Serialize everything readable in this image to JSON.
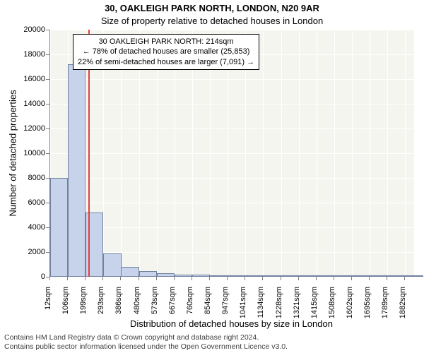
{
  "title": "30, OAKLEIGH PARK NORTH, LONDON, N20 9AR",
  "subtitle": "Size of property relative to detached houses in London",
  "y_label": "Number of detached properties",
  "x_label": "Distribution of detached houses by size in London",
  "footer_line1": "Contains HM Land Registry data © Crown copyright and database right 2024.",
  "footer_line2": "Contains public sector information licensed under the Open Government Licence v3.0.",
  "chart": {
    "type": "bar",
    "ylim": [
      0,
      20000
    ],
    "ytick_step": 2000,
    "xtick_labels": [
      "12sqm",
      "106sqm",
      "199sqm",
      "293sqm",
      "386sqm",
      "480sqm",
      "573sqm",
      "667sqm",
      "760sqm",
      "854sqm",
      "947sqm",
      "1041sqm",
      "1134sqm",
      "1228sqm",
      "1321sqm",
      "1415sqm",
      "1508sqm",
      "1602sqm",
      "1695sqm",
      "1789sqm",
      "1882sqm"
    ],
    "xtick_positions": [
      12,
      106,
      199,
      293,
      386,
      480,
      573,
      667,
      760,
      854,
      947,
      1041,
      1134,
      1228,
      1321,
      1415,
      1508,
      1602,
      1695,
      1789,
      1882
    ],
    "x_domain": [
      12,
      1929
    ],
    "bar_width_sqm": 93.6,
    "bar_fill": "#c6d3eb",
    "bar_border": "#7080a0",
    "plot_bg": "#f5f5f0",
    "grid_color": "#ffffff",
    "bars": [
      {
        "x": 12,
        "count": 8000
      },
      {
        "x": 106,
        "count": 17200
      },
      {
        "x": 199,
        "count": 5200
      },
      {
        "x": 293,
        "count": 1900
      },
      {
        "x": 386,
        "count": 800
      },
      {
        "x": 480,
        "count": 430
      },
      {
        "x": 573,
        "count": 280
      },
      {
        "x": 667,
        "count": 180
      },
      {
        "x": 760,
        "count": 150
      },
      {
        "x": 854,
        "count": 100
      },
      {
        "x": 947,
        "count": 50
      },
      {
        "x": 1041,
        "count": 30
      },
      {
        "x": 1134,
        "count": 20
      },
      {
        "x": 1228,
        "count": 15
      },
      {
        "x": 1321,
        "count": 10
      },
      {
        "x": 1415,
        "count": 8
      },
      {
        "x": 1508,
        "count": 5
      },
      {
        "x": 1602,
        "count": 5
      },
      {
        "x": 1695,
        "count": 3
      },
      {
        "x": 1789,
        "count": 2
      },
      {
        "x": 1882,
        "count": 2
      }
    ],
    "reference_line": {
      "x": 214,
      "color": "#e04040",
      "width": 2
    },
    "annotation": {
      "line1": "30 OAKLEIGH PARK NORTH: 214sqm",
      "line2": "← 78% of detached houses are smaller (25,853)",
      "line3": "22% of semi-detached houses are larger (7,091) →",
      "border": "#000000",
      "bg": "#ffffff",
      "fontsize": 11
    }
  }
}
